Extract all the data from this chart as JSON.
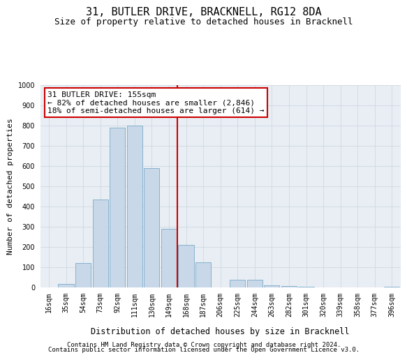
{
  "title": "31, BUTLER DRIVE, BRACKNELL, RG12 8DA",
  "subtitle": "Size of property relative to detached houses in Bracknell",
  "xlabel": "Distribution of detached houses by size in Bracknell",
  "ylabel": "Number of detached properties",
  "footer1": "Contains HM Land Registry data © Crown copyright and database right 2024.",
  "footer2": "Contains public sector information licensed under the Open Government Licence v3.0.",
  "bar_labels": [
    "16sqm",
    "35sqm",
    "54sqm",
    "73sqm",
    "92sqm",
    "111sqm",
    "130sqm",
    "149sqm",
    "168sqm",
    "187sqm",
    "206sqm",
    "225sqm",
    "244sqm",
    "263sqm",
    "282sqm",
    "301sqm",
    "320sqm",
    "339sqm",
    "358sqm",
    "377sqm",
    "396sqm"
  ],
  "bar_values": [
    0,
    18,
    120,
    435,
    790,
    800,
    590,
    290,
    210,
    125,
    0,
    38,
    38,
    12,
    8,
    5,
    0,
    0,
    0,
    0,
    5
  ],
  "bar_color": "#c8d8e8",
  "bar_edge_color": "#7aaac8",
  "grid_color": "#d0d8e0",
  "bg_color": "#e8eef4",
  "vline_x": 7.5,
  "vline_color": "#cc0000",
  "annotation_line1": "31 BUTLER DRIVE: 155sqm",
  "annotation_line2": "← 82% of detached houses are smaller (2,846)",
  "annotation_line3": "18% of semi-detached houses are larger (614) →",
  "annotation_box_color": "#cc0000",
  "ylim": [
    0,
    1000
  ],
  "yticks": [
    0,
    100,
    200,
    300,
    400,
    500,
    600,
    700,
    800,
    900,
    1000
  ],
  "title_fontsize": 11,
  "subtitle_fontsize": 9,
  "annotation_fontsize": 8,
  "ylabel_fontsize": 8,
  "xlabel_fontsize": 8.5,
  "footer_fontsize": 6.5,
  "tick_fontsize": 7
}
